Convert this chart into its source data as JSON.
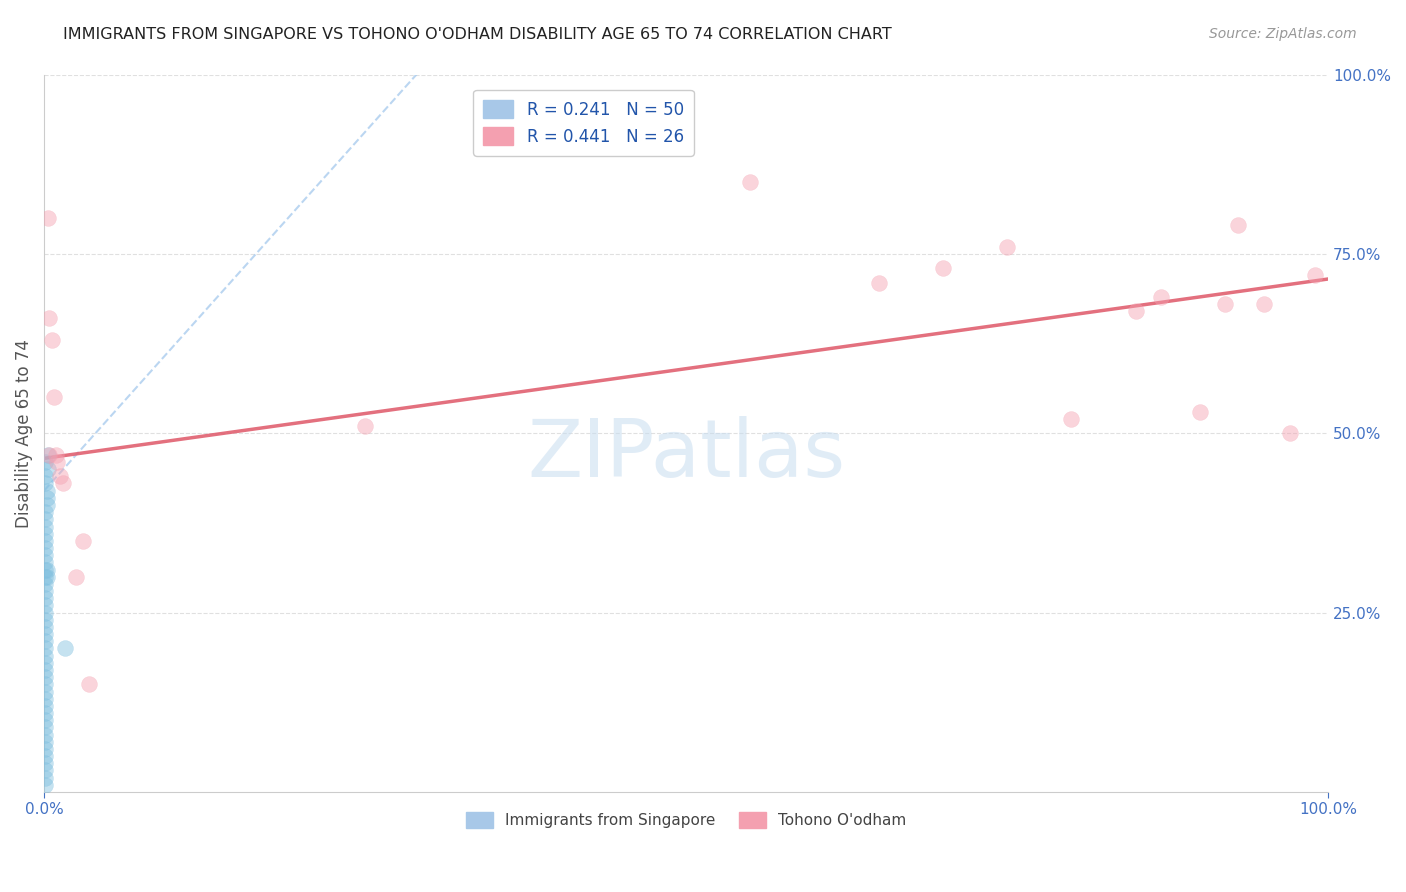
{
  "title": "IMMIGRANTS FROM SINGAPORE VS TOHONO O'ODHAM DISABILITY AGE 65 TO 74 CORRELATION CHART",
  "source": "Source: ZipAtlas.com",
  "ylabel": "Disability Age 65 to 74",
  "xlim": [
    0.0,
    1.0
  ],
  "ylim": [
    0.0,
    1.0
  ],
  "ytick_positions": [
    0.25,
    0.5,
    0.75,
    1.0
  ],
  "watermark_text": "ZIPatlas",
  "legend_labels_bottom": [
    "Immigrants from Singapore",
    "Tohono O'odham"
  ],
  "blue_color": "#7fbfdf",
  "pink_color": "#f4a0b0",
  "blue_line_color": "#aaccee",
  "pink_line_color": "#e06070",
  "tick_color": "#4472c4",
  "grid_color": "#e0e0e0",
  "blue_scatter_x": [
    0.001,
    0.001,
    0.001,
    0.002,
    0.002,
    0.002,
    0.003,
    0.003,
    0.001,
    0.001,
    0.001,
    0.001,
    0.001,
    0.001,
    0.001,
    0.001,
    0.002,
    0.002,
    0.001,
    0.001,
    0.001,
    0.001,
    0.001,
    0.001,
    0.001,
    0.001,
    0.001,
    0.001,
    0.001,
    0.001,
    0.001,
    0.001,
    0.001,
    0.001,
    0.001,
    0.001,
    0.001,
    0.001,
    0.001,
    0.001,
    0.001,
    0.001,
    0.001,
    0.001,
    0.001,
    0.016,
    0.001,
    0.001,
    0.001,
    0.001
  ],
  "blue_scatter_y": [
    0.46,
    0.44,
    0.43,
    0.42,
    0.41,
    0.4,
    0.47,
    0.45,
    0.39,
    0.38,
    0.37,
    0.36,
    0.35,
    0.34,
    0.33,
    0.32,
    0.31,
    0.3,
    0.29,
    0.28,
    0.27,
    0.26,
    0.25,
    0.24,
    0.23,
    0.22,
    0.21,
    0.2,
    0.19,
    0.18,
    0.17,
    0.16,
    0.15,
    0.14,
    0.13,
    0.12,
    0.11,
    0.1,
    0.09,
    0.08,
    0.07,
    0.06,
    0.05,
    0.04,
    0.03,
    0.2,
    0.02,
    0.01,
    0.31,
    0.3
  ],
  "pink_scatter_x": [
    0.003,
    0.004,
    0.004,
    0.006,
    0.008,
    0.009,
    0.01,
    0.012,
    0.015,
    0.025,
    0.03,
    0.035,
    0.25,
    0.55,
    0.65,
    0.7,
    0.75,
    0.8,
    0.85,
    0.87,
    0.9,
    0.92,
    0.93,
    0.95,
    0.97,
    0.99
  ],
  "pink_scatter_y": [
    0.8,
    0.66,
    0.47,
    0.63,
    0.55,
    0.47,
    0.46,
    0.44,
    0.43,
    0.3,
    0.35,
    0.15,
    0.51,
    0.85,
    0.71,
    0.73,
    0.76,
    0.52,
    0.67,
    0.69,
    0.53,
    0.68,
    0.79,
    0.68,
    0.5,
    0.72
  ],
  "blue_trend_x": [
    0.0,
    0.3
  ],
  "blue_trend_y": [
    0.42,
    1.02
  ],
  "pink_trend_x": [
    0.0,
    1.0
  ],
  "pink_trend_y": [
    0.465,
    0.715
  ],
  "scatter_size": 130,
  "scatter_alpha": 0.45
}
